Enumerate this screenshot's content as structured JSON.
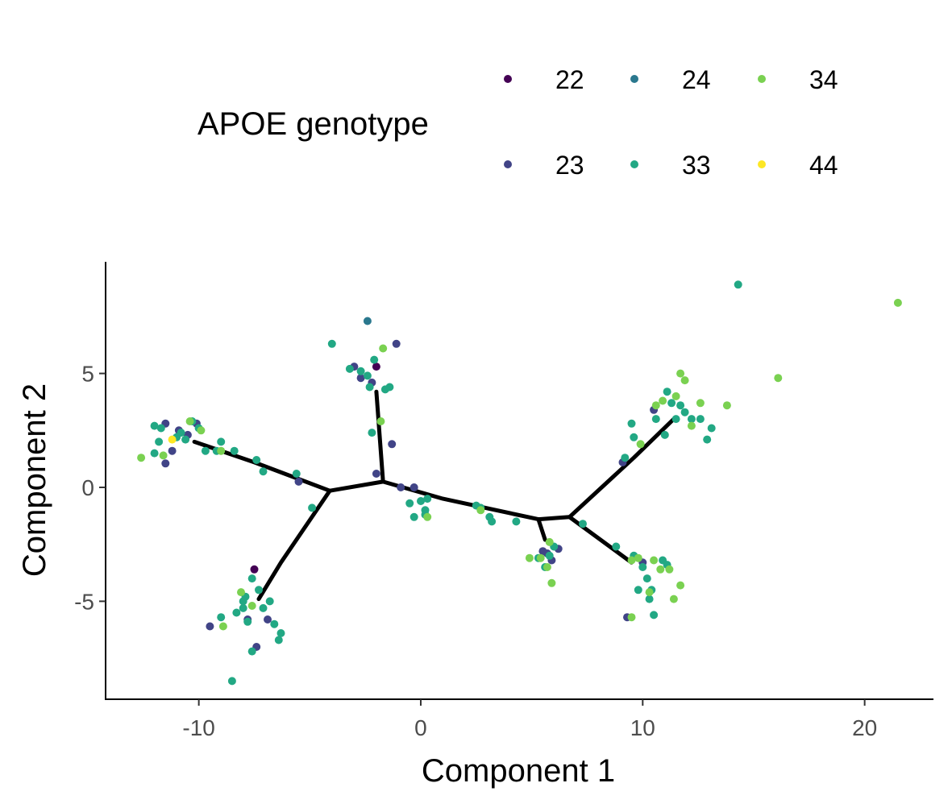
{
  "chart_data": {
    "type": "scatter",
    "title": "",
    "xlabel": "Component 1",
    "ylabel": "Component 2",
    "xlim": [
      -14.2,
      23.1
    ],
    "ylim": [
      -9.3,
      9.9
    ],
    "x_ticks": [
      -10,
      0,
      10,
      20
    ],
    "x_tick_labels": [
      "-10",
      "0",
      "10",
      "20"
    ],
    "y_ticks": [
      -5,
      0,
      5
    ],
    "y_tick_labels": [
      "-5",
      "0",
      "5"
    ],
    "grid": false,
    "legend": {
      "title": "APOE genotype",
      "placement": "top",
      "entries": [
        {
          "label": "22",
          "color": "#440154"
        },
        {
          "label": "23",
          "color": "#414487"
        },
        {
          "label": "24",
          "color": "#2A788E"
        },
        {
          "label": "33",
          "color": "#22A884"
        },
        {
          "label": "34",
          "color": "#7AD151"
        },
        {
          "label": "44",
          "color": "#FDE725"
        }
      ]
    },
    "trajectory": [
      [
        [
          -10.2,
          2.0
        ],
        [
          -7.5,
          1.1
        ],
        [
          -4.1,
          -0.15
        ]
      ],
      [
        [
          -4.1,
          -0.15
        ],
        [
          -6.3,
          -3.3
        ],
        [
          -7.3,
          -4.9
        ]
      ],
      [
        [
          -4.1,
          -0.15
        ],
        [
          -1.7,
          0.25
        ]
      ],
      [
        [
          -1.7,
          0.25
        ],
        [
          -2.0,
          4.2
        ]
      ],
      [
        [
          -1.7,
          0.25
        ],
        [
          1.0,
          -0.5
        ],
        [
          5.3,
          -1.4
        ]
      ],
      [
        [
          5.3,
          -1.4
        ],
        [
          5.6,
          -2.3
        ]
      ],
      [
        [
          5.3,
          -1.4
        ],
        [
          6.7,
          -1.3
        ]
      ],
      [
        [
          6.7,
          -1.3
        ],
        [
          9.6,
          1.3
        ],
        [
          11.4,
          3.0
        ]
      ],
      [
        [
          6.7,
          -1.3
        ],
        [
          9.5,
          -3.3
        ]
      ]
    ],
    "series": [
      {
        "name": "22",
        "color": "#440154",
        "points": [
          [
            -2.0,
            5.3
          ],
          [
            -7.5,
            -3.6
          ]
        ]
      },
      {
        "name": "23",
        "color": "#414487",
        "points": [
          [
            -11.5,
            1.05
          ],
          [
            -11.2,
            1.6
          ],
          [
            -10.9,
            2.5
          ],
          [
            -10.5,
            2.3
          ],
          [
            -10.1,
            2.8
          ],
          [
            -11.5,
            2.8
          ],
          [
            -5.5,
            0.25
          ],
          [
            -2.7,
            4.8
          ],
          [
            -2.2,
            4.6
          ],
          [
            -1.3,
            1.9
          ],
          [
            -2.0,
            0.6
          ],
          [
            -1.1,
            6.3
          ],
          [
            -0.9,
            0.0
          ],
          [
            -0.3,
            0.0
          ],
          [
            -3.0,
            5.3
          ],
          [
            5.5,
            -2.8
          ],
          [
            5.9,
            -3.2
          ],
          [
            6.2,
            -2.7
          ],
          [
            5.7,
            -2.9
          ],
          [
            10.5,
            3.4
          ],
          [
            9.1,
            1.1
          ],
          [
            10.0,
            -3.3
          ],
          [
            9.3,
            -5.7
          ],
          [
            -7.8,
            -5.8
          ],
          [
            -9.5,
            -6.1
          ],
          [
            -7.4,
            -7.0
          ],
          [
            -6.9,
            -5.8
          ]
        ]
      },
      {
        "name": "24",
        "color": "#2A788E",
        "points": [
          [
            -2.4,
            7.3
          ]
        ]
      },
      {
        "name": "33",
        "color": "#22A884",
        "points": [
          [
            -12.0,
            2.7
          ],
          [
            -11.7,
            2.6
          ],
          [
            -11.8,
            2.0
          ],
          [
            -12.0,
            1.5
          ],
          [
            -11.0,
            2.2
          ],
          [
            -10.8,
            2.4
          ],
          [
            -10.6,
            2.1
          ],
          [
            -10.3,
            2.9
          ],
          [
            -10.0,
            2.6
          ],
          [
            -9.7,
            1.6
          ],
          [
            -9.2,
            1.6
          ],
          [
            -9.0,
            2.0
          ],
          [
            -8.4,
            1.6
          ],
          [
            -7.4,
            1.2
          ],
          [
            -7.1,
            0.7
          ],
          [
            -5.6,
            0.6
          ],
          [
            -4.9,
            -0.9
          ],
          [
            -4.0,
            6.3
          ],
          [
            -3.2,
            5.2
          ],
          [
            -2.7,
            5.1
          ],
          [
            -2.3,
            4.4
          ],
          [
            -1.6,
            4.3
          ],
          [
            -1.4,
            4.4
          ],
          [
            -2.1,
            5.6
          ],
          [
            -2.2,
            2.4
          ],
          [
            -2.4,
            4.9
          ],
          [
            -0.5,
            -0.7
          ],
          [
            -0.3,
            -1.3
          ],
          [
            0.3,
            -0.5
          ],
          [
            0.2,
            -1.0
          ],
          [
            0.0,
            -0.6
          ],
          [
            0.2,
            -1.2
          ],
          [
            2.5,
            -0.8
          ],
          [
            2.7,
            -0.9
          ],
          [
            3.1,
            -1.3
          ],
          [
            3.2,
            -1.5
          ],
          [
            4.3,
            -1.5
          ],
          [
            5.6,
            -3.5
          ],
          [
            5.3,
            -3.1
          ],
          [
            6.0,
            -2.6
          ],
          [
            5.8,
            -3.0
          ],
          [
            7.3,
            -1.6
          ],
          [
            8.8,
            -2.6
          ],
          [
            9.2,
            1.3
          ],
          [
            9.5,
            2.8
          ],
          [
            9.6,
            2.2
          ],
          [
            10.6,
            3.0
          ],
          [
            11.0,
            2.3
          ],
          [
            11.1,
            4.2
          ],
          [
            11.3,
            3.7
          ],
          [
            11.7,
            3.6
          ],
          [
            11.9,
            3.3
          ],
          [
            12.2,
            3.0
          ],
          [
            12.6,
            3.0
          ],
          [
            12.9,
            2.1
          ],
          [
            13.1,
            2.6
          ],
          [
            11.5,
            3.0
          ],
          [
            9.6,
            -3.0
          ],
          [
            10.0,
            -3.5
          ],
          [
            10.2,
            -4.0
          ],
          [
            10.3,
            -4.9
          ],
          [
            10.5,
            -5.6
          ],
          [
            10.9,
            -3.2
          ],
          [
            11.1,
            -3.4
          ],
          [
            10.4,
            -4.5
          ],
          [
            9.8,
            -4.5
          ],
          [
            -8.5,
            -8.5
          ],
          [
            -7.6,
            -7.2
          ],
          [
            -7.8,
            -5.9
          ],
          [
            -8.0,
            -5.3
          ],
          [
            -8.3,
            -5.5
          ],
          [
            -7.9,
            -4.8
          ],
          [
            -7.1,
            -5.3
          ],
          [
            -6.8,
            -5.0
          ],
          [
            -6.6,
            -6.0
          ],
          [
            -6.4,
            -6.7
          ],
          [
            -6.3,
            -6.4
          ],
          [
            -7.3,
            -4.5
          ],
          [
            -7.6,
            -4.0
          ],
          [
            -8.0,
            -5.0
          ],
          [
            -9.0,
            -5.7
          ],
          [
            14.3,
            8.9
          ]
        ]
      },
      {
        "name": "34",
        "color": "#7AD151",
        "points": [
          [
            -12.6,
            1.3
          ],
          [
            -11.6,
            1.4
          ],
          [
            -9.9,
            2.5
          ],
          [
            -9.0,
            1.6
          ],
          [
            -10.4,
            2.9
          ],
          [
            -1.7,
            6.1
          ],
          [
            -1.8,
            2.9
          ],
          [
            0.3,
            -1.3
          ],
          [
            5.4,
            -3.1
          ],
          [
            4.9,
            -3.1
          ],
          [
            5.9,
            -4.2
          ],
          [
            5.7,
            -3.5
          ],
          [
            5.8,
            -2.4
          ],
          [
            2.7,
            -1.0
          ],
          [
            10.9,
            3.8
          ],
          [
            11.7,
            5.0
          ],
          [
            11.9,
            4.7
          ],
          [
            11.5,
            4.0
          ],
          [
            12.6,
            3.7
          ],
          [
            13.8,
            3.6
          ],
          [
            16.1,
            4.8
          ],
          [
            12.2,
            2.7
          ],
          [
            9.9,
            1.9
          ],
          [
            10.6,
            3.6
          ],
          [
            9.5,
            -3.2
          ],
          [
            9.8,
            -3.1
          ],
          [
            10.5,
            -3.2
          ],
          [
            10.8,
            -3.6
          ],
          [
            11.2,
            -3.6
          ],
          [
            11.7,
            -4.3
          ],
          [
            11.4,
            -4.9
          ],
          [
            9.5,
            -5.7
          ],
          [
            10.3,
            -4.6
          ],
          [
            -8.9,
            -6.1
          ],
          [
            -8.1,
            -4.6
          ],
          [
            -7.6,
            -5.2
          ],
          [
            21.5,
            8.1
          ]
        ]
      },
      {
        "name": "44",
        "color": "#FDE725",
        "points": [
          [
            -11.2,
            2.1
          ]
        ]
      }
    ]
  }
}
